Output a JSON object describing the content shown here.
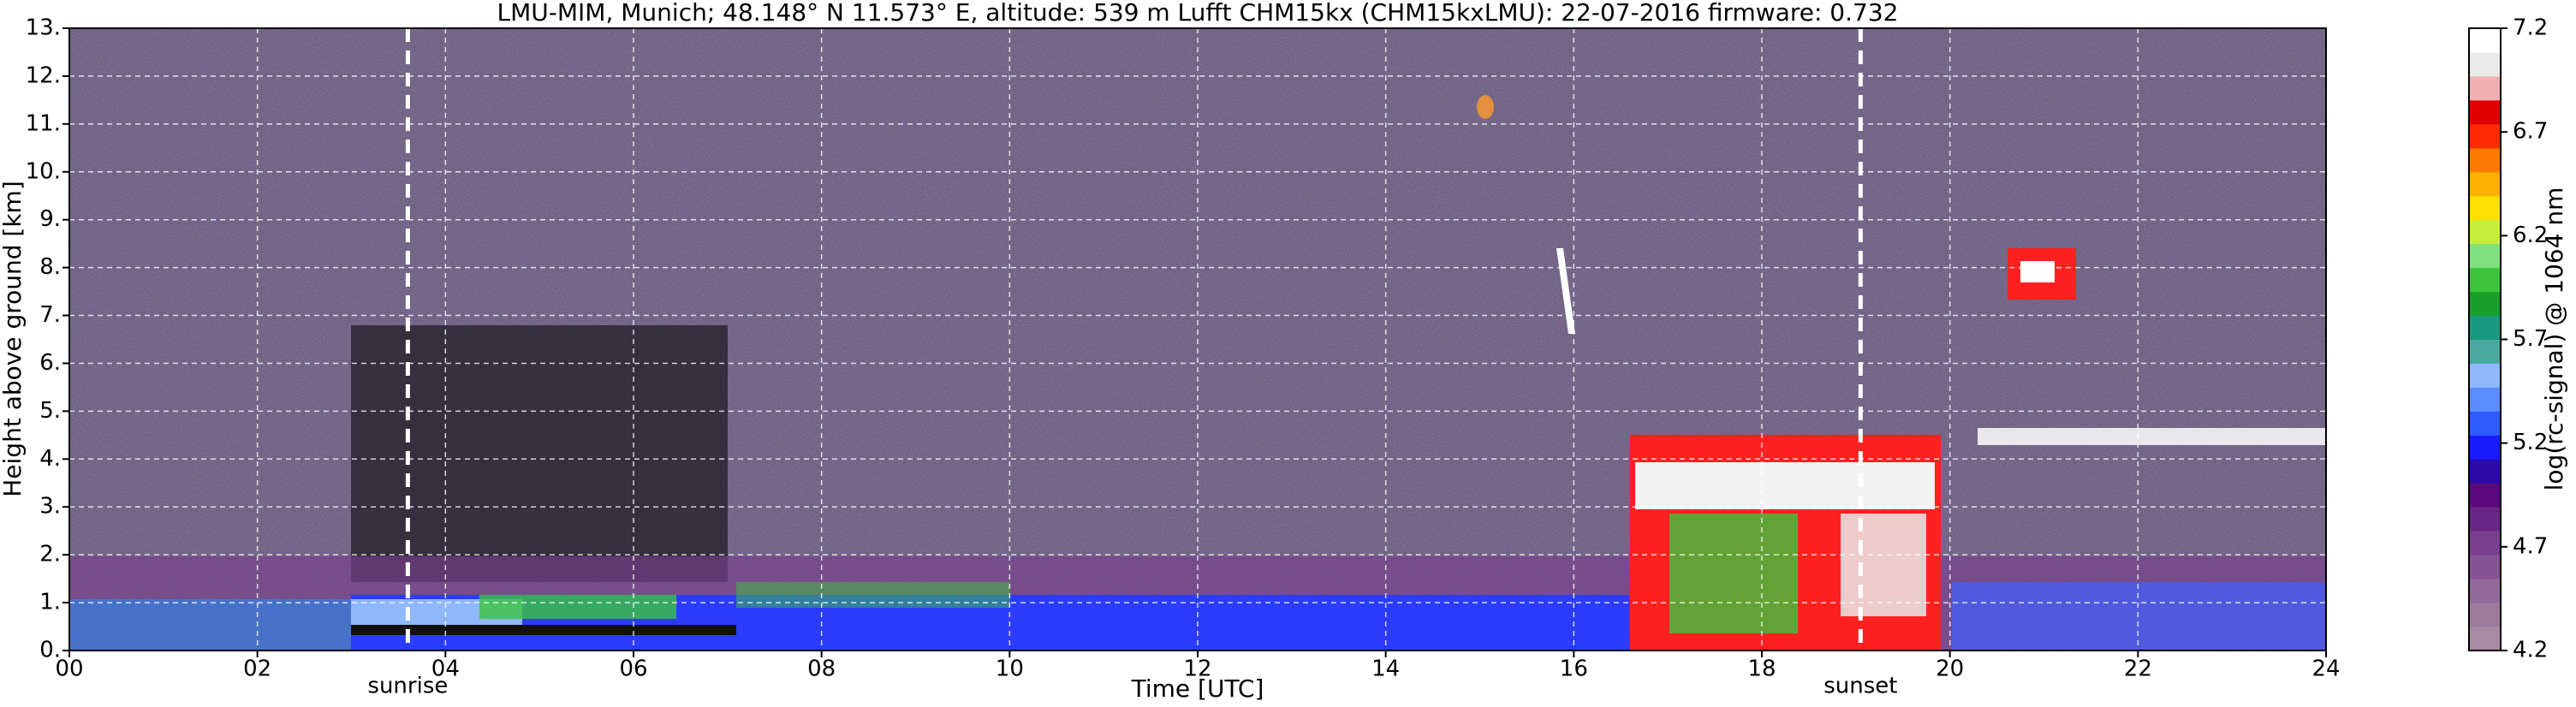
{
  "chart_data": {
    "type": "ceilometer",
    "title": "LMU-MIM, Munich; 48.148° N 11.573° E, altitude: 539 m    Lufft CHM15kx (CHM15kxLMU): 22-07-2016    firmware: 0.732",
    "x_label": "Time [UTC]",
    "y_label": "Height above ground [km]",
    "xlim": [
      0,
      24
    ],
    "xticks": [
      {
        "value": 0,
        "label": "00"
      },
      {
        "value": 2,
        "label": "02"
      },
      {
        "value": 4,
        "label": "04"
      },
      {
        "value": 6,
        "label": "06"
      },
      {
        "value": 8,
        "label": "08"
      },
      {
        "value": 10,
        "label": "10"
      },
      {
        "value": 12,
        "label": "12"
      },
      {
        "value": 14,
        "label": "14"
      },
      {
        "value": 16,
        "label": "16"
      },
      {
        "value": 18,
        "label": "18"
      },
      {
        "value": 20,
        "label": "20"
      },
      {
        "value": 22,
        "label": "22"
      },
      {
        "value": 24,
        "label": "24"
      }
    ],
    "ylim": [
      0,
      13
    ],
    "yticks": [
      {
        "value": 0,
        "label": "0."
      },
      {
        "value": 1,
        "label": "1."
      },
      {
        "value": 2,
        "label": "2."
      },
      {
        "value": 3,
        "label": "3."
      },
      {
        "value": 4,
        "label": "4."
      },
      {
        "value": 5,
        "label": "5."
      },
      {
        "value": 6,
        "label": "6."
      },
      {
        "value": 7,
        "label": "7."
      },
      {
        "value": 8,
        "label": "8."
      },
      {
        "value": 9,
        "label": "9."
      },
      {
        "value": 10,
        "label": "10."
      },
      {
        "value": 11,
        "label": "11."
      },
      {
        "value": 12,
        "label": "12."
      },
      {
        "value": 13,
        "label": "13."
      }
    ],
    "grid": true,
    "annotations": [
      {
        "text": "sunrise",
        "x": 3.6
      },
      {
        "text": "sunset",
        "x": 19.05
      }
    ],
    "colorbar": {
      "label": "log(rc-signal) @ 1064 nm",
      "clim": [
        4.2,
        7.2
      ],
      "ticks": [
        4.2,
        4.7,
        5.2,
        5.7,
        6.2,
        6.7,
        7.2
      ],
      "colors": [
        "#a98aa3",
        "#9e7a9c",
        "#93699a",
        "#855394",
        "#7a3f8e",
        "#6a2686",
        "#5a0a7e",
        "#2a0aa8",
        "#1a1aff",
        "#2f5bff",
        "#5c8cff",
        "#8fb8ff",
        "#4aa8a0",
        "#1a9a80",
        "#17a02a",
        "#3cc43c",
        "#7fe07f",
        "#c8ee3c",
        "#ffe000",
        "#ffb000",
        "#ff7a00",
        "#ff2a00",
        "#e00000",
        "#f0b0b0",
        "#eaeaea",
        "#ffffff"
      ]
    }
  }
}
